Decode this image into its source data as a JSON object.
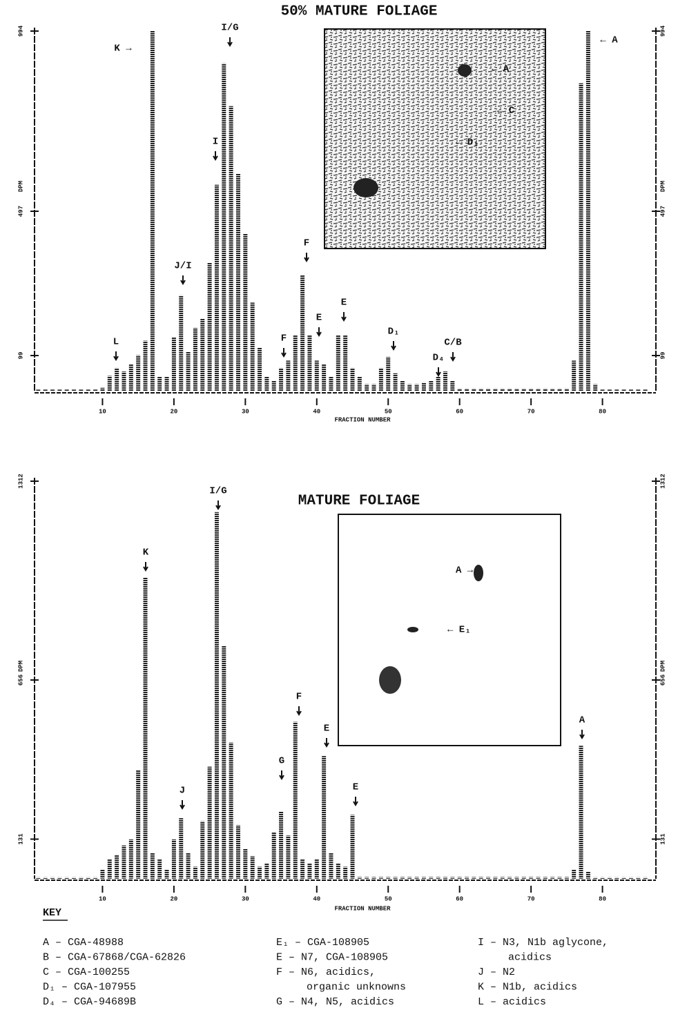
{
  "chart_data": [
    {
      "type": "bar",
      "title": "50% MATURE FOLIAGE",
      "x_label": "FRACTION NUMBER",
      "y_label": "DPM",
      "color": "#222222",
      "x": [
        1,
        2,
        3,
        4,
        5,
        6,
        7,
        8,
        9,
        10,
        11,
        12,
        13,
        14,
        15,
        16,
        17,
        18,
        19,
        20,
        21,
        22,
        23,
        24,
        25,
        26,
        27,
        28,
        29,
        30,
        31,
        32,
        33,
        34,
        35,
        36,
        37,
        38,
        39,
        40,
        41,
        42,
        43,
        44,
        45,
        46,
        47,
        48,
        49,
        50,
        51,
        52,
        53,
        54,
        55,
        56,
        57,
        58,
        59,
        60,
        61,
        62,
        63,
        64,
        65,
        66,
        67,
        68,
        69,
        70,
        71,
        72,
        73,
        74,
        75,
        76,
        77,
        78,
        79,
        80,
        81,
        82,
        83,
        84,
        85,
        86
      ],
      "values": [
        5,
        5,
        5,
        5,
        5,
        5,
        5,
        5,
        5,
        10,
        43,
        65,
        55,
        75,
        100,
        140,
        994,
        40,
        40,
        150,
        265,
        110,
        175,
        200,
        355,
        570,
        905,
        787,
        600,
        435,
        245,
        120,
        40,
        30,
        65,
        85,
        155,
        320,
        155,
        85,
        75,
        40,
        155,
        155,
        65,
        40,
        20,
        20,
        65,
        95,
        50,
        30,
        20,
        20,
        25,
        30,
        40,
        55,
        30,
        8,
        8,
        8,
        8,
        8,
        8,
        8,
        8,
        8,
        8,
        8,
        8,
        8,
        8,
        8,
        8,
        85,
        850,
        994,
        20,
        5,
        5,
        5,
        5,
        5,
        5,
        5
      ],
      "xlim": [
        0,
        87
      ],
      "xticks": [
        10,
        20,
        30,
        40,
        50,
        60,
        70,
        80
      ],
      "ylim": [
        0,
        994
      ],
      "yticks": [
        99,
        497,
        994
      ],
      "annotations": [
        "K →",
        "I/G",
        "I",
        "J/I",
        "L",
        "F",
        "F",
        "E",
        "E",
        "D₁",
        "D₄",
        "C/B",
        "← A"
      ],
      "inset_labels": [
        "← A",
        "← C",
        "← D₁"
      ]
    },
    {
      "type": "bar",
      "title": "MATURE FOLIAGE",
      "x_label": "FRACTION NUMBER",
      "y_label": "DPM",
      "color": "#222222",
      "x": [
        1,
        2,
        3,
        4,
        5,
        6,
        7,
        8,
        9,
        10,
        11,
        12,
        13,
        14,
        15,
        16,
        17,
        18,
        19,
        20,
        21,
        22,
        23,
        24,
        25,
        26,
        27,
        28,
        29,
        30,
        31,
        32,
        33,
        34,
        35,
        36,
        37,
        38,
        39,
        40,
        41,
        42,
        43,
        44,
        45,
        46,
        47,
        48,
        49,
        50,
        51,
        52,
        53,
        54,
        55,
        56,
        57,
        58,
        59,
        60,
        61,
        62,
        63,
        64,
        65,
        66,
        67,
        68,
        69,
        70,
        71,
        72,
        73,
        74,
        75,
        76,
        77,
        78,
        79,
        80,
        81,
        82,
        83,
        84,
        85,
        86
      ],
      "values": [
        5,
        5,
        5,
        5,
        5,
        5,
        5,
        5,
        5,
        30,
        64,
        80,
        110,
        130,
        360,
        995,
        86,
        64,
        30,
        130,
        200,
        86,
        40,
        190,
        370,
        1210,
        770,
        450,
        177,
        98,
        75,
        40,
        52,
        155,
        223,
        143,
        518,
        64,
        52,
        64,
        405,
        86,
        52,
        40,
        211,
        6,
        6,
        6,
        6,
        6,
        6,
        6,
        6,
        6,
        6,
        6,
        6,
        6,
        6,
        6,
        6,
        6,
        6,
        6,
        6,
        6,
        6,
        6,
        6,
        6,
        6,
        6,
        6,
        6,
        6,
        30,
        439,
        25,
        5,
        5,
        5,
        5,
        5,
        5,
        5,
        5
      ],
      "xlim": [
        0,
        87
      ],
      "xticks": [
        10,
        20,
        30,
        40,
        50,
        60,
        70,
        80
      ],
      "ylim": [
        0,
        1312
      ],
      "yticks": [
        131,
        656,
        1312
      ],
      "annotations": [
        "I/G",
        "K",
        "J",
        "G",
        "F",
        "E",
        "E",
        "A"
      ],
      "inset_labels": [
        "A →",
        "← E₁"
      ]
    }
  ],
  "key": {
    "title": "KEY",
    "columns": [
      [
        {
          "lines": [
            "A – CGA-48988"
          ]
        },
        {
          "lines": [
            "B – CGA-67868/CGA-62826"
          ]
        },
        {
          "lines": [
            "C – CGA-100255"
          ]
        },
        {
          "lines": [
            "D₁ – CGA-107955"
          ]
        },
        {
          "lines": [
            "D₄ – CGA-94689B"
          ]
        }
      ],
      [
        {
          "lines": [
            "E₁ – CGA-108905"
          ]
        },
        {
          "lines": [
            "E – N7, CGA-108905"
          ]
        },
        {
          "lines": [
            "F – N6, acidics,",
            "organic unknowns"
          ]
        },
        {
          "lines": [
            "G – N4, N5, acidics"
          ]
        }
      ],
      [
        {
          "lines": [
            "I – N3, N1b aglycone,",
            "acidics"
          ]
        },
        {
          "lines": [
            "J – N2"
          ]
        },
        {
          "lines": [
            "K – N1b, acidics"
          ]
        },
        {
          "lines": [
            "L – acidics"
          ]
        }
      ]
    ]
  }
}
